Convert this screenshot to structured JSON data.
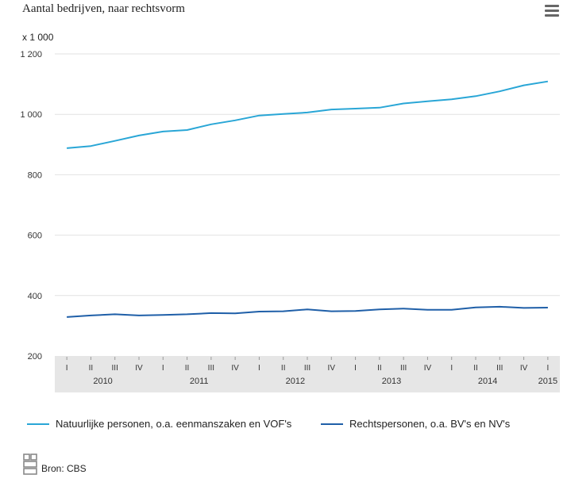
{
  "title": "Aantal bedrijven, naar rechtsvorm",
  "unit_label": "x 1 000",
  "source": "Bron: CBS",
  "menu_icon": "hamburger-menu-icon",
  "logo_icon": "cbs-logo-icon",
  "chart_data": {
    "type": "line",
    "ylim": [
      200,
      1200
    ],
    "yticks": [
      200,
      400,
      600,
      800,
      1000,
      1200
    ],
    "ytick_labels": [
      "200",
      "400",
      "600",
      "800",
      "1 000",
      "1 200"
    ],
    "quarters": [
      "I",
      "II",
      "III",
      "IV",
      "I",
      "II",
      "III",
      "IV",
      "I",
      "II",
      "III",
      "IV",
      "I",
      "II",
      "III",
      "IV",
      "I",
      "II",
      "III",
      "IV",
      "I"
    ],
    "years": [
      {
        "label": "2010",
        "start": 0,
        "end": 3
      },
      {
        "label": "2011",
        "start": 4,
        "end": 7
      },
      {
        "label": "2012",
        "start": 8,
        "end": 11
      },
      {
        "label": "2013",
        "start": 12,
        "end": 15
      },
      {
        "label": "2014",
        "start": 16,
        "end": 19
      },
      {
        "label": "2015",
        "start": 20,
        "end": 20
      }
    ],
    "grid": true,
    "legend_position": "bottom",
    "series": [
      {
        "name": "Natuurlijke personen, o.a. eenmanszaken en VOF's",
        "color": "#29a6d6",
        "values": [
          888,
          895,
          912,
          930,
          943,
          948,
          967,
          980,
          996,
          1001,
          1006,
          1016,
          1019,
          1022,
          1036,
          1043,
          1050,
          1060,
          1076,
          1096,
          1109
        ]
      },
      {
        "name": "Rechtspersonen, o.a. BV's en NV's",
        "color": "#1f5fa8",
        "values": [
          329,
          334,
          338,
          334,
          336,
          338,
          342,
          341,
          347,
          348,
          354,
          348,
          349,
          354,
          357,
          353,
          353,
          361,
          363,
          359,
          360
        ]
      }
    ]
  }
}
